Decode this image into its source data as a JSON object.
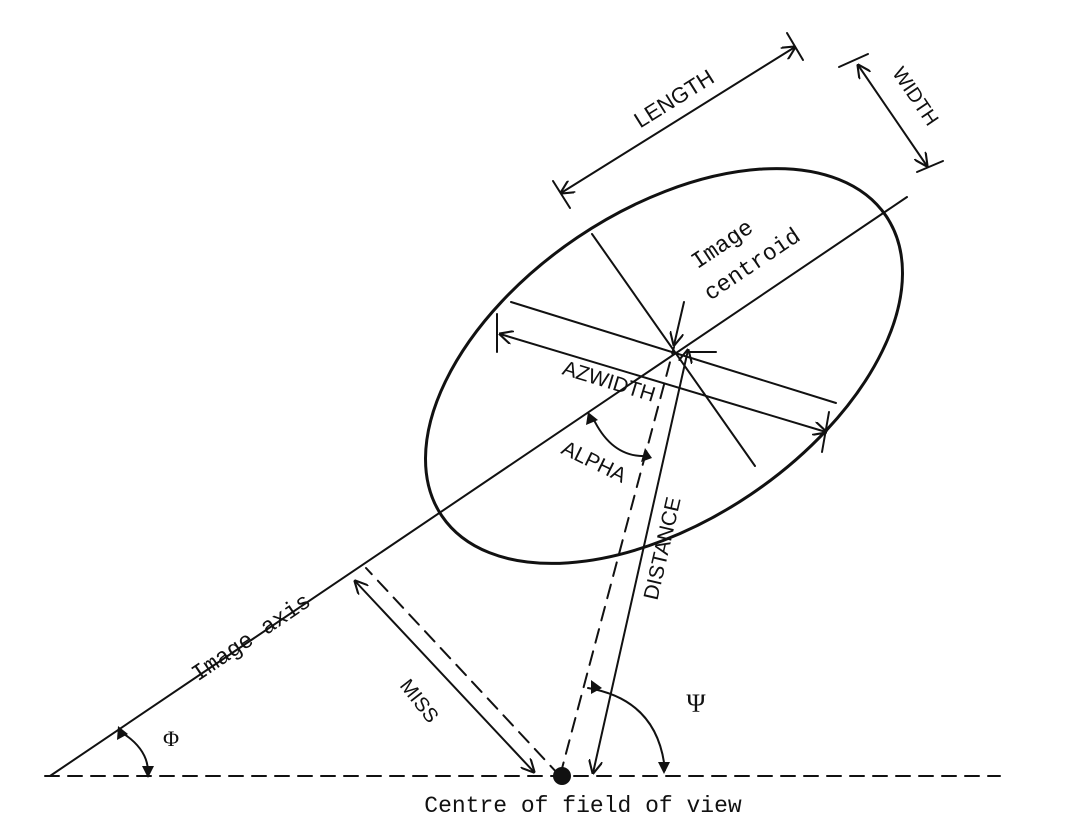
{
  "diagram": {
    "labels": {
      "length": "LENGTH",
      "width": "WIDTH",
      "image_centroid_line1": "Image",
      "image_centroid_line2": "centroid",
      "azwidth": "AZWIDTH",
      "alpha": "ALPHA",
      "distance": "DISTANCE",
      "image_axis": "Image axis",
      "miss": "MISS",
      "psi": "Ψ",
      "phi": "Φ",
      "centre_of_field": "Centre of field of view"
    },
    "colors": {
      "ink": "#111111",
      "background": "#ffffff"
    }
  }
}
